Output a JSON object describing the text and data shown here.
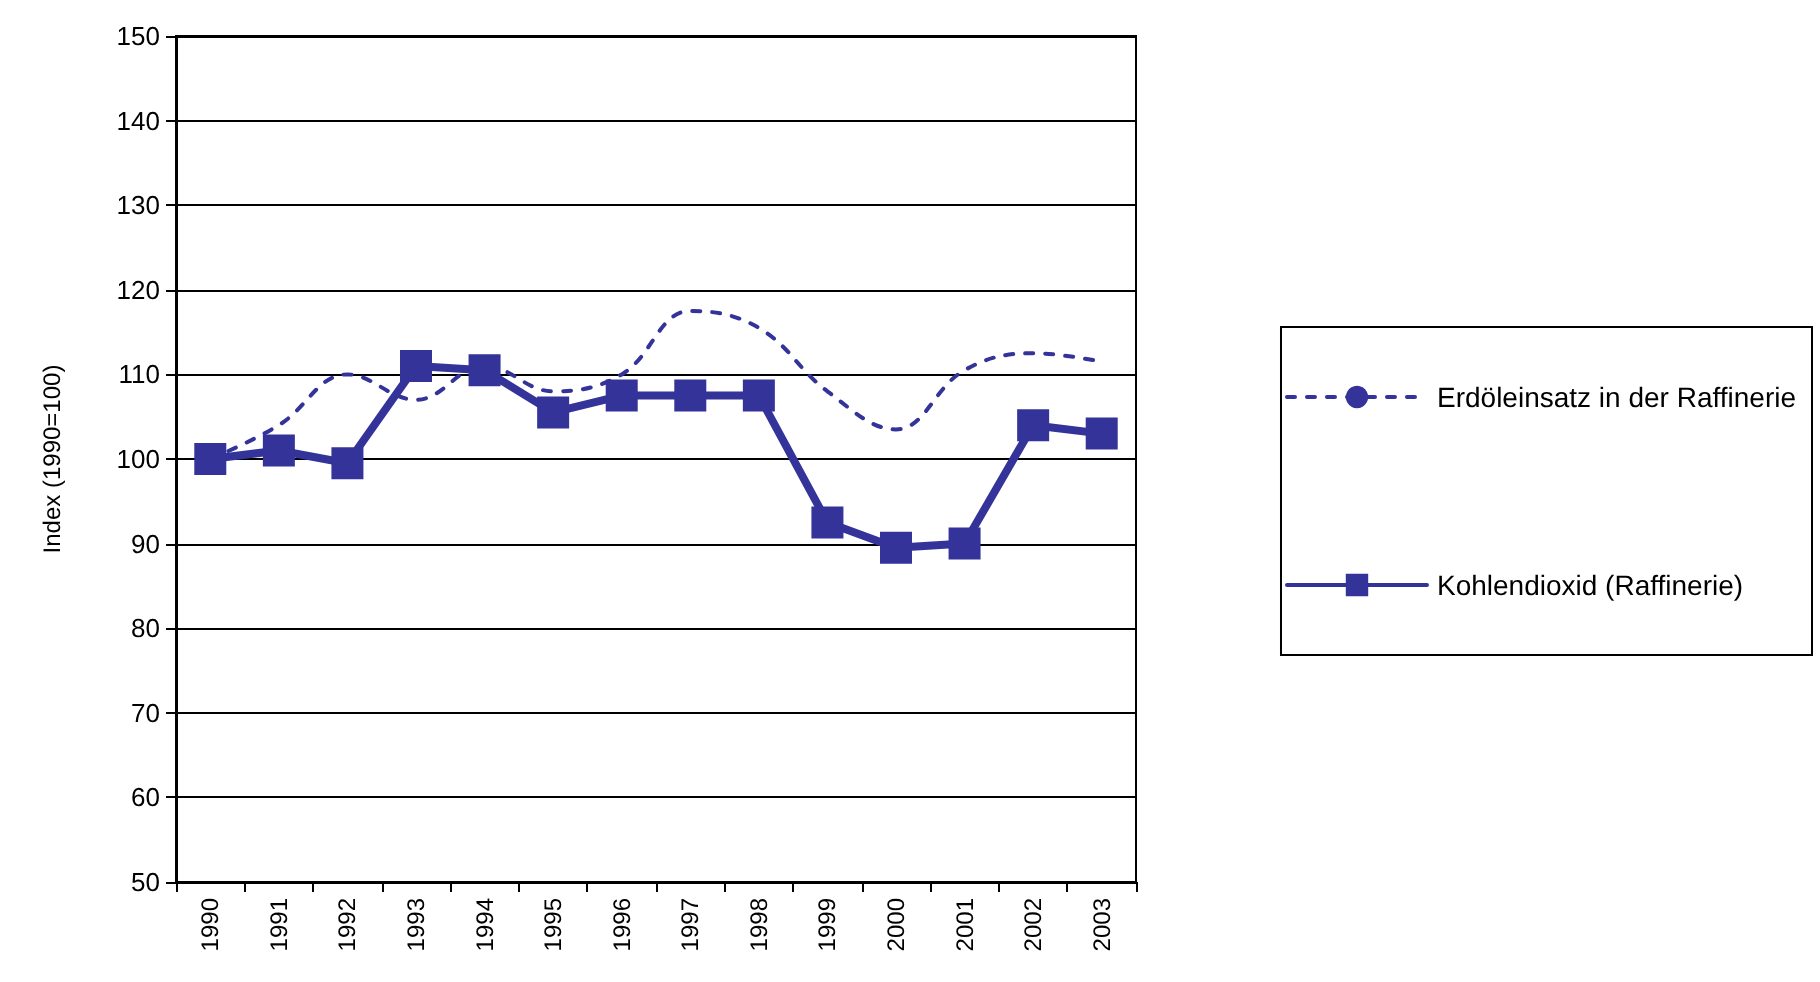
{
  "chart_data": {
    "type": "line",
    "ylabel": "Index (1990=100)",
    "categories": [
      "1990",
      "1991",
      "1992",
      "1993",
      "1994",
      "1995",
      "1996",
      "1997",
      "1998",
      "1999",
      "2000",
      "2001",
      "2002",
      "2003"
    ],
    "ylim": [
      50,
      150
    ],
    "yticks": [
      50,
      60,
      70,
      80,
      90,
      100,
      110,
      120,
      130,
      140,
      150
    ],
    "grid": "y",
    "legend": "right",
    "series": [
      {
        "name": "Erdöleinsatz in der Raffinerie",
        "color": "#333399",
        "line_style": "dashed",
        "marker": "none",
        "values": [
          100,
          104,
          110,
          107,
          111,
          108,
          110,
          117.5,
          115.5,
          108,
          103.5,
          110.5,
          112.5,
          111.5
        ]
      },
      {
        "name": "Kohlendioxid (Raffinerie)",
        "color": "#333399",
        "line_style": "solid",
        "marker": "square",
        "values": [
          100,
          101,
          99.5,
          111,
          110.5,
          105.5,
          107.5,
          107.5,
          107.5,
          92.5,
          89.5,
          90,
          104,
          103
        ]
      }
    ]
  }
}
